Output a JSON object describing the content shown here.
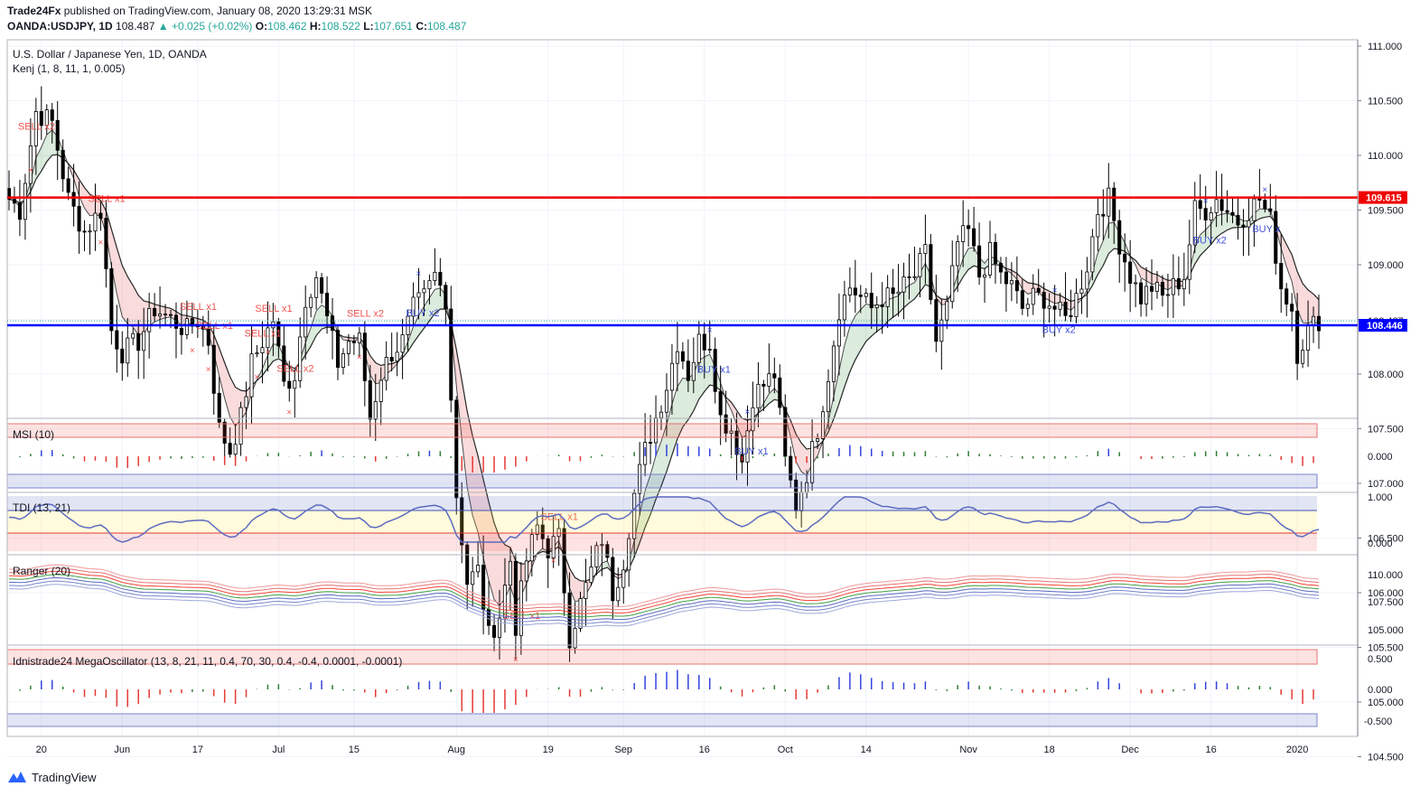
{
  "header": {
    "publisher": "Trade24Fx",
    "published_text": "published on TradingView.com, January 08, 2020 13:29:31 MSK",
    "symbol": "OANDA:USDJPY, 1D",
    "last": "108.487",
    "change": "+0.025 (+0.02%)",
    "open_label": "O:",
    "open": "108.462",
    "high_label": "H:",
    "high": "108.522",
    "low_label": "L:",
    "low": "107.651",
    "close_label": "C:",
    "close": "108.487"
  },
  "main_pane": {
    "title": "U.S. Dollar / Japanese Yen, 1D, OANDA",
    "indicator": "Kenj (1, 8, 11, 1, 0.005)",
    "y_ticks": [
      "111.000",
      "110.500",
      "110.000",
      "109.500",
      "109.000",
      "108.500",
      "108.000",
      "107.500",
      "107.000",
      "106.500",
      "106.000",
      "105.500",
      "105.000",
      "104.500"
    ],
    "y_tick_values": [
      111.0,
      110.5,
      110.0,
      109.5,
      109.0,
      108.5,
      108.0,
      107.5,
      107.0,
      106.5,
      106.0,
      105.5,
      105.0,
      104.5
    ],
    "red_line": {
      "value": 109.615,
      "label": "109.615",
      "color": "#f00000"
    },
    "blue_line": {
      "value": 108.446,
      "label": "108.446",
      "color": "#0000ff"
    },
    "last_price_label": "108.487"
  },
  "signals": [
    {
      "text": "SELL x2",
      "type": "sell",
      "i": 4
    },
    {
      "text": "SELL x1",
      "type": "sell",
      "i": 17
    },
    {
      "text": "SELL x1",
      "type": "sell",
      "i": 34
    },
    {
      "text": "SELL x1",
      "type": "sell",
      "i": 37
    },
    {
      "text": "SELL x1",
      "type": "sell",
      "i": 46
    },
    {
      "text": "SELL x1",
      "type": "sell",
      "i": 48
    },
    {
      "text": "SELL x2",
      "type": "sell",
      "i": 52
    },
    {
      "text": "SELL x2",
      "type": "sell",
      "i": 65
    },
    {
      "text": "BUY x2",
      "type": "buy",
      "i": 76
    },
    {
      "text": "SELL x1",
      "type": "sell",
      "i": 94
    },
    {
      "text": "SELL x1",
      "type": "sell",
      "i": 101
    },
    {
      "text": "BUY x1",
      "type": "buy",
      "i": 130
    },
    {
      "text": "BUY x1",
      "type": "buy",
      "i": 137
    },
    {
      "text": "BUY x2",
      "type": "buy",
      "i": 194
    },
    {
      "text": "BUY x2",
      "type": "buy",
      "i": 222
    },
    {
      "text": "BUY x",
      "type": "buy",
      "i": 233
    }
  ],
  "x_axis": {
    "labels": [
      {
        "text": "20",
        "i": 6
      },
      {
        "text": "Jun",
        "i": 21
      },
      {
        "text": "17",
        "i": 35
      },
      {
        "text": "Jul",
        "i": 50
      },
      {
        "text": "15",
        "i": 64
      },
      {
        "text": "Aug",
        "i": 83
      },
      {
        "text": "19",
        "i": 100
      },
      {
        "text": "Sep",
        "i": 114
      },
      {
        "text": "16",
        "i": 129
      },
      {
        "text": "Oct",
        "i": 144
      },
      {
        "text": "14",
        "i": 159
      },
      {
        "text": "Nov",
        "i": 178
      },
      {
        "text": "18",
        "i": 193
      },
      {
        "text": "Dec",
        "i": 208
      },
      {
        "text": "16",
        "i": 223
      },
      {
        "text": "2020",
        "i": 239
      }
    ]
  },
  "panes": {
    "msi": {
      "title": "MSI (10)",
      "tick": "0.000"
    },
    "tdi": {
      "title": "TDI (13, 21)",
      "ticks": [
        "1.000",
        "0.000"
      ]
    },
    "ranger": {
      "title": "Ranger (20)",
      "ticks": [
        "110.000",
        "107.500",
        "105.000"
      ]
    },
    "mega": {
      "title": "Idnistrade24 MegaOscillator (13, 8, 21, 11, 0.4, 70, 30, 0.4, -0.4, 0.0001, -0.0001)",
      "ticks": [
        "0.500",
        "0.000",
        "-0.500"
      ]
    }
  },
  "footer": {
    "brand": "TradingView"
  },
  "chart_data": {
    "type": "candlestick",
    "title": "U.S. Dollar / Japanese Yen, 1D, OANDA",
    "y_range": [
      104.2,
      111.1
    ],
    "x_range_label": "May 2019 – Jan 2020 (daily)",
    "close_path": [
      [
        0,
        109.6
      ],
      [
        2,
        109.5
      ],
      [
        5,
        110.4
      ],
      [
        8,
        110.3
      ],
      [
        11,
        109.6
      ],
      [
        14,
        109.3
      ],
      [
        17,
        109.5
      ],
      [
        19,
        108.4
      ],
      [
        21,
        108.2
      ],
      [
        24,
        108.3
      ],
      [
        27,
        108.6
      ],
      [
        30,
        108.5
      ],
      [
        33,
        108.4
      ],
      [
        35,
        108.5
      ],
      [
        37,
        108.3
      ],
      [
        39,
        107.5
      ],
      [
        41,
        107.3
      ],
      [
        43,
        107.6
      ],
      [
        45,
        108.1
      ],
      [
        47,
        108.3
      ],
      [
        49,
        108.5
      ],
      [
        51,
        107.9
      ],
      [
        53,
        108.0
      ],
      [
        55,
        108.7
      ],
      [
        57,
        108.9
      ],
      [
        59,
        108.5
      ],
      [
        61,
        108.1
      ],
      [
        63,
        108.3
      ],
      [
        65,
        108.3
      ],
      [
        67,
        107.6
      ],
      [
        69,
        108.0
      ],
      [
        71,
        108.2
      ],
      [
        73,
        108.3
      ],
      [
        75,
        108.6
      ],
      [
        77,
        108.7
      ],
      [
        79,
        108.9
      ],
      [
        81,
        108.7
      ],
      [
        83,
        106.9
      ],
      [
        85,
        106.1
      ],
      [
        87,
        106.2
      ],
      [
        89,
        105.6
      ],
      [
        91,
        105.8
      ],
      [
        93,
        106.3
      ],
      [
        94,
        105.7
      ],
      [
        96,
        106.3
      ],
      [
        98,
        106.6
      ],
      [
        100,
        106.4
      ],
      [
        102,
        106.5
      ],
      [
        104,
        105.6
      ],
      [
        106,
        105.9
      ],
      [
        108,
        106.2
      ],
      [
        110,
        106.5
      ],
      [
        112,
        106.0
      ],
      [
        114,
        106.3
      ],
      [
        116,
        106.9
      ],
      [
        118,
        107.3
      ],
      [
        120,
        107.6
      ],
      [
        122,
        107.9
      ],
      [
        124,
        108.3
      ],
      [
        126,
        108.0
      ],
      [
        128,
        108.3
      ],
      [
        130,
        108.3
      ],
      [
        132,
        107.6
      ],
      [
        134,
        107.5
      ],
      [
        136,
        107.2
      ],
      [
        138,
        107.8
      ],
      [
        140,
        107.9
      ],
      [
        142,
        108.0
      ],
      [
        144,
        107.2
      ],
      [
        146,
        106.8
      ],
      [
        148,
        107.1
      ],
      [
        150,
        107.5
      ],
      [
        152,
        108.0
      ],
      [
        154,
        108.6
      ],
      [
        156,
        108.8
      ],
      [
        158,
        108.7
      ],
      [
        160,
        108.6
      ],
      [
        162,
        108.7
      ],
      [
        164,
        108.7
      ],
      [
        166,
        108.8
      ],
      [
        168,
        108.9
      ],
      [
        170,
        109.1
      ],
      [
        172,
        108.3
      ],
      [
        174,
        108.6
      ],
      [
        176,
        109.2
      ],
      [
        178,
        109.3
      ],
      [
        180,
        108.9
      ],
      [
        182,
        109.1
      ],
      [
        184,
        108.9
      ],
      [
        186,
        108.8
      ],
      [
        188,
        108.6
      ],
      [
        190,
        108.7
      ],
      [
        192,
        108.7
      ],
      [
        194,
        108.6
      ],
      [
        196,
        108.5
      ],
      [
        198,
        108.7
      ],
      [
        200,
        109.0
      ],
      [
        202,
        109.5
      ],
      [
        204,
        109.6
      ],
      [
        206,
        109.2
      ],
      [
        208,
        108.9
      ],
      [
        210,
        108.7
      ],
      [
        212,
        108.8
      ],
      [
        214,
        108.7
      ],
      [
        216,
        108.8
      ],
      [
        218,
        108.9
      ],
      [
        220,
        109.5
      ],
      [
        222,
        109.5
      ],
      [
        224,
        109.6
      ],
      [
        226,
        109.5
      ],
      [
        228,
        109.4
      ],
      [
        230,
        109.5
      ],
      [
        232,
        109.6
      ],
      [
        234,
        109.4
      ],
      [
        236,
        108.8
      ],
      [
        238,
        108.6
      ],
      [
        239,
        108.2
      ],
      [
        241,
        108.4
      ],
      [
        243,
        108.5
      ]
    ],
    "levels": [
      {
        "name": "109.615",
        "value": 109.615
      },
      {
        "name": "108.446",
        "value": 108.446
      }
    ]
  }
}
